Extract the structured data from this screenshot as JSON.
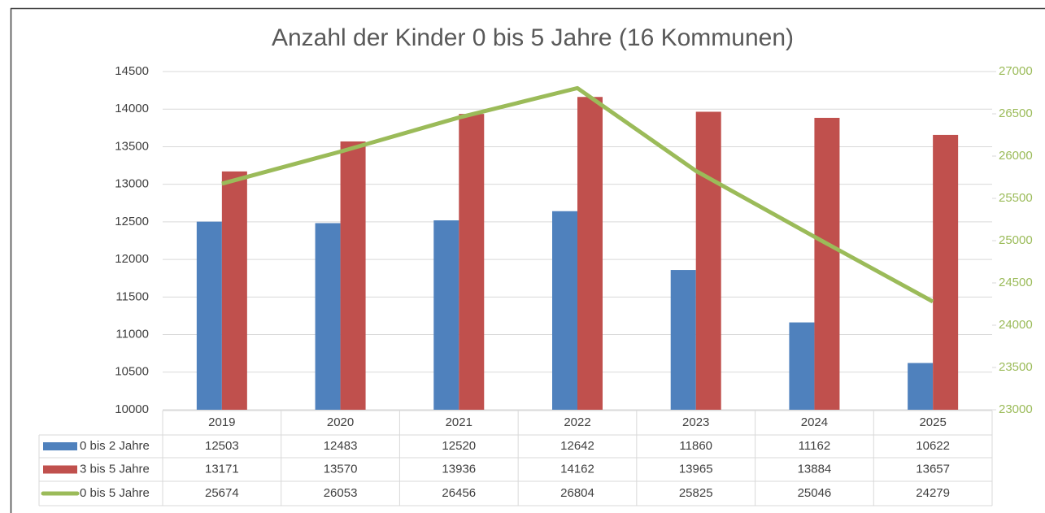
{
  "chart_data": {
    "type": "bar",
    "title": "Anzahl der Kinder 0 bis 5 Jahre (16 Kommunen)",
    "categories": [
      "2019",
      "2020",
      "2021",
      "2022",
      "2023",
      "2024",
      "2025"
    ],
    "series": [
      {
        "name": "0 bis 2 Jahre",
        "color": "#4f81bd",
        "values": [
          12503,
          12483,
          12520,
          12642,
          11860,
          11162,
          10622
        ]
      },
      {
        "name": "3 bis 5 Jahre",
        "color": "#c0504d",
        "values": [
          13171,
          13570,
          13936,
          14162,
          13965,
          13884,
          13657
        ]
      },
      {
        "name": "0 bis 5 Jahre",
        "color": "#9bbb59",
        "type": "line",
        "axis": "y2",
        "values": [
          25674,
          26053,
          26456,
          26804,
          25825,
          25046,
          24279
        ]
      }
    ],
    "ylim": [
      10000,
      14500
    ],
    "yticks": [
      10000,
      10500,
      11000,
      11500,
      12000,
      12500,
      13000,
      13500,
      14000,
      14500
    ],
    "y2lim": [
      23000,
      27000
    ],
    "y2ticks": [
      23000,
      23500,
      24000,
      24500,
      25000,
      25500,
      26000,
      26500,
      27000
    ],
    "grid": true
  }
}
